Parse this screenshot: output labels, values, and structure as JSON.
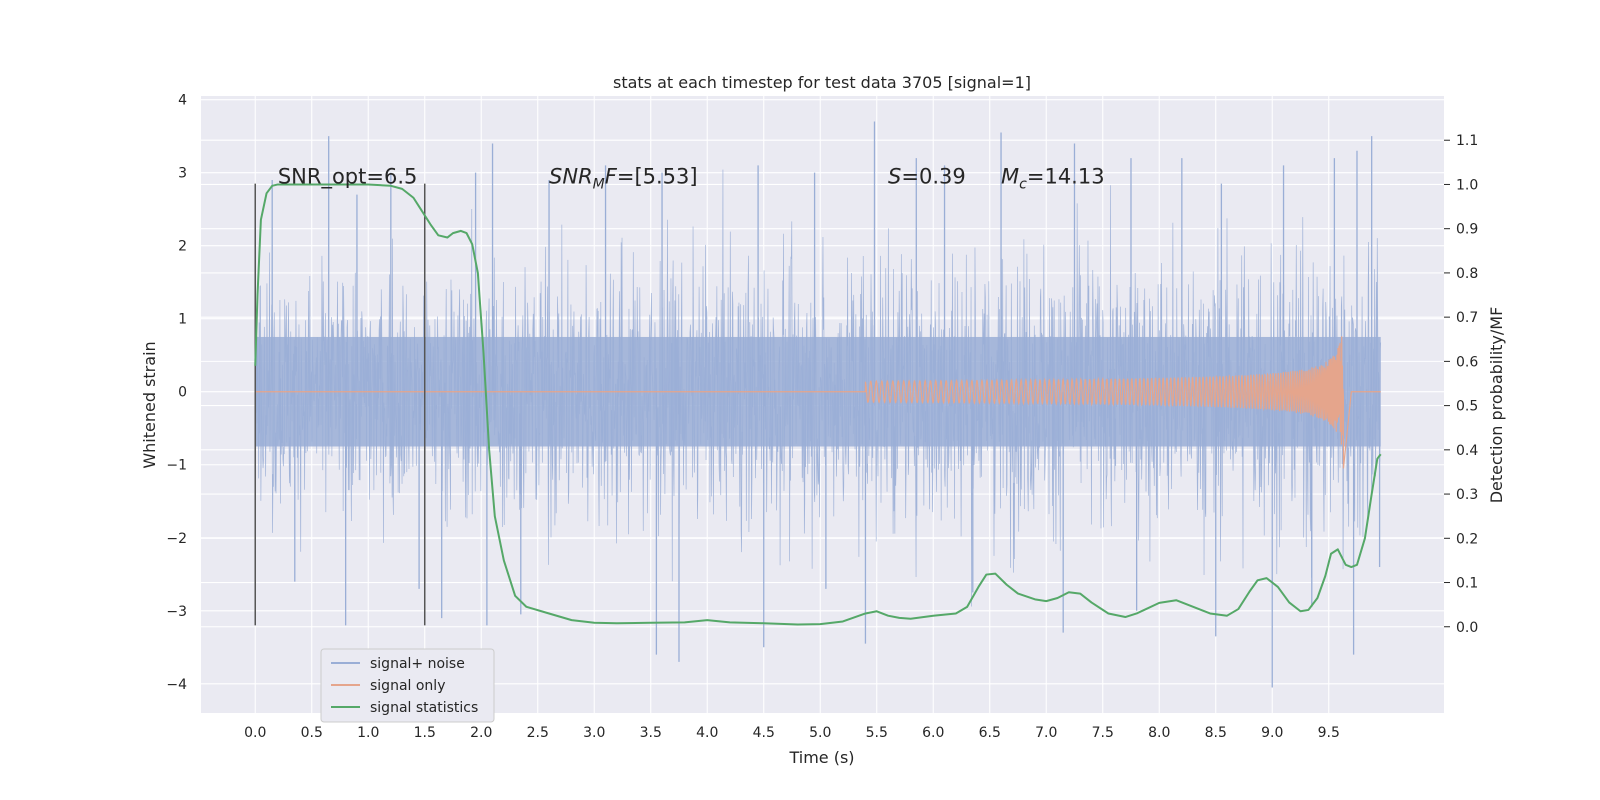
{
  "chart_data": {
    "type": "line",
    "title": "stats at each timestep for test data 3705 [signal=1]",
    "xlabel": "Time (s)",
    "ylabel": "Whitened strain",
    "ylabel_right": "Detection probability/MF",
    "xlim": [
      -0.48,
      10.52
    ],
    "ylim": [
      -4.4,
      4.05
    ],
    "ylim_right": [
      -0.195,
      1.2
    ],
    "x_ticks": [
      "0.0",
      "0.5",
      "1.0",
      "1.5",
      "2.0",
      "2.5",
      "3.0",
      "3.5",
      "4.0",
      "4.5",
      "5.0",
      "5.5",
      "6.0",
      "6.5",
      "7.0",
      "7.5",
      "8.0",
      "8.5",
      "9.0",
      "9.5"
    ],
    "y_ticks": [
      "4",
      "3",
      "2",
      "1",
      "0",
      "−1",
      "−2",
      "−3",
      "−4"
    ],
    "y_right_ticks": [
      "1.1",
      "1.0",
      "0.9",
      "0.8",
      "0.7",
      "0.6",
      "0.5",
      "0.4",
      "0.3",
      "0.2",
      "0.1",
      "0.0"
    ],
    "grid": true,
    "legend_position": "lower-left",
    "colors": {
      "background": "#eaeaf2",
      "grid": "#ffffff",
      "noise": "#9aaed6",
      "signal": "#e5a58c",
      "stats": "#55a868",
      "vline": "#555555"
    },
    "series": [
      {
        "name": "signal+ noise",
        "description_envelope_upper": [
          [
            0.0,
            2.6
          ],
          [
            0.5,
            2.2
          ],
          [
            1.0,
            2.3
          ],
          [
            1.5,
            2.2
          ],
          [
            2.0,
            2.5
          ],
          [
            3.0,
            2.6
          ],
          [
            4.0,
            2.5
          ],
          [
            5.0,
            2.6
          ],
          [
            6.0,
            2.7
          ],
          [
            7.0,
            2.6
          ],
          [
            8.0,
            2.7
          ],
          [
            9.0,
            2.6
          ],
          [
            9.95,
            2.9
          ]
        ],
        "spikes": [
          [
            0.15,
            2.9
          ],
          [
            0.65,
            3.5
          ],
          [
            0.9,
            2.7
          ],
          [
            1.2,
            3.0
          ],
          [
            1.95,
            3.0
          ],
          [
            2.1,
            3.4
          ],
          [
            2.6,
            2.9
          ],
          [
            3.1,
            3.1
          ],
          [
            3.6,
            3.0
          ],
          [
            4.45,
            3.1
          ],
          [
            4.95,
            3.0
          ],
          [
            5.48,
            3.7
          ],
          [
            5.85,
            3.2
          ],
          [
            6.1,
            3.1
          ],
          [
            6.6,
            3.55
          ],
          [
            7.25,
            3.4
          ],
          [
            7.75,
            3.2
          ],
          [
            8.2,
            3.2
          ],
          [
            8.55,
            2.85
          ],
          [
            9.1,
            3.1
          ],
          [
            9.55,
            3.2
          ],
          [
            9.75,
            3.3
          ],
          [
            9.88,
            3.5
          ],
          [
            0.35,
            -2.6
          ],
          [
            0.8,
            -3.2
          ],
          [
            1.45,
            -2.7
          ],
          [
            1.65,
            -3.1
          ],
          [
            2.05,
            -3.2
          ],
          [
            2.35,
            -3.05
          ],
          [
            3.55,
            -3.6
          ],
          [
            3.75,
            -3.7
          ],
          [
            4.5,
            -3.5
          ],
          [
            5.05,
            -2.7
          ],
          [
            5.4,
            -3.45
          ],
          [
            6.35,
            -2.75
          ],
          [
            7.15,
            -3.3
          ],
          [
            7.8,
            -3.0
          ],
          [
            8.5,
            -3.35
          ],
          [
            9.0,
            -4.05
          ],
          [
            9.35,
            -2.95
          ],
          [
            9.72,
            -3.6
          ],
          [
            9.95,
            -2.4
          ]
        ],
        "x_range": [
          0.0,
          9.96
        ],
        "core_amplitude": 0.75
      },
      {
        "name": "signal only",
        "x_range": [
          0.0,
          9.7
        ],
        "chirp_start": 5.4,
        "chirp_peak_time": 9.63,
        "chirp_peak_amplitude": 1.1,
        "chirp_min_amplitude": -1.05
      },
      {
        "name": "signal statistics",
        "x": [
          0.0,
          0.02,
          0.05,
          0.1,
          0.15,
          0.2,
          0.3,
          0.5,
          0.8,
          1.0,
          1.2,
          1.3,
          1.4,
          1.45,
          1.55,
          1.62,
          1.7,
          1.75,
          1.82,
          1.87,
          1.92,
          1.97,
          2.02,
          2.07,
          2.12,
          2.2,
          2.3,
          2.4,
          2.6,
          2.8,
          3.0,
          3.2,
          3.5,
          3.8,
          4.0,
          4.2,
          4.5,
          4.8,
          5.0,
          5.2,
          5.4,
          5.5,
          5.6,
          5.7,
          5.8,
          6.0,
          6.2,
          6.3,
          6.4,
          6.47,
          6.55,
          6.65,
          6.75,
          6.9,
          7.0,
          7.1,
          7.2,
          7.3,
          7.4,
          7.55,
          7.7,
          7.8,
          8.0,
          8.15,
          8.3,
          8.45,
          8.6,
          8.7,
          8.8,
          8.87,
          8.95,
          9.05,
          9.15,
          9.25,
          9.32,
          9.4,
          9.47,
          9.52,
          9.58,
          9.65,
          9.7,
          9.75,
          9.82,
          9.88,
          9.93,
          9.96
        ],
        "values": [
          0.59,
          0.75,
          0.92,
          0.98,
          0.997,
          1.0,
          1.0,
          1.0,
          1.0,
          1.0,
          0.997,
          0.99,
          0.97,
          0.95,
          0.91,
          0.885,
          0.88,
          0.89,
          0.895,
          0.89,
          0.865,
          0.8,
          0.62,
          0.4,
          0.25,
          0.15,
          0.07,
          0.045,
          0.03,
          0.015,
          0.009,
          0.008,
          0.009,
          0.01,
          0.015,
          0.01,
          0.008,
          0.005,
          0.006,
          0.012,
          0.03,
          0.035,
          0.025,
          0.02,
          0.018,
          0.025,
          0.03,
          0.045,
          0.09,
          0.118,
          0.12,
          0.095,
          0.075,
          0.062,
          0.058,
          0.065,
          0.078,
          0.075,
          0.055,
          0.03,
          0.022,
          0.03,
          0.054,
          0.06,
          0.045,
          0.03,
          0.025,
          0.04,
          0.08,
          0.105,
          0.11,
          0.09,
          0.055,
          0.035,
          0.038,
          0.065,
          0.115,
          0.165,
          0.175,
          0.14,
          0.135,
          0.14,
          0.2,
          0.3,
          0.38,
          0.39
        ]
      }
    ],
    "vertical_lines": [
      {
        "x": 0.0,
        "y_from": -3.2,
        "y_to": 2.85
      },
      {
        "x": 1.5,
        "y_from": -3.2,
        "y_to": 2.85
      }
    ],
    "annotations": [
      {
        "x": 0.2,
        "y": 2.95,
        "parts": [
          {
            "t": "SNR_opt=6.5",
            "i": false
          }
        ]
      },
      {
        "x": 2.6,
        "y": 2.95,
        "parts": [
          {
            "t": "SNR",
            "i": true
          },
          {
            "t": "M",
            "i": true,
            "sub": true
          },
          {
            "t": "F",
            "i": true
          },
          {
            "t": "=[5.53]",
            "i": false
          }
        ]
      },
      {
        "x": 5.6,
        "y": 2.95,
        "parts": [
          {
            "t": "S",
            "i": true
          },
          {
            "t": "=0.39",
            "i": false
          }
        ]
      },
      {
        "x": 6.6,
        "y": 2.95,
        "parts": [
          {
            "t": "M",
            "i": true
          },
          {
            "t": "c",
            "i": true,
            "sub": true
          },
          {
            "t": "=14.13",
            "i": false
          }
        ]
      }
    ]
  }
}
